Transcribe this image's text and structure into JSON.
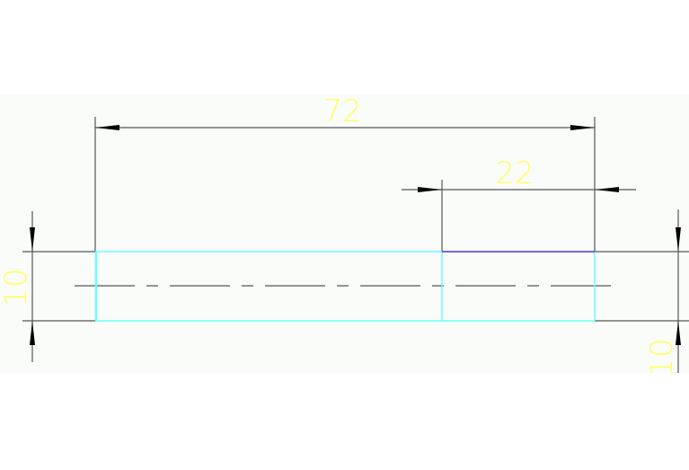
{
  "colors": {
    "background": "#fafcfa",
    "dimension_text": "#ffff66",
    "dimension_line": "#555555",
    "outline": "#66ffff",
    "highlight_edge": "#4433dd",
    "arrow": "#000000"
  },
  "dimensions": {
    "overall_length": "72",
    "segment_length": "22",
    "height_left": "10",
    "height_right": "10"
  }
}
